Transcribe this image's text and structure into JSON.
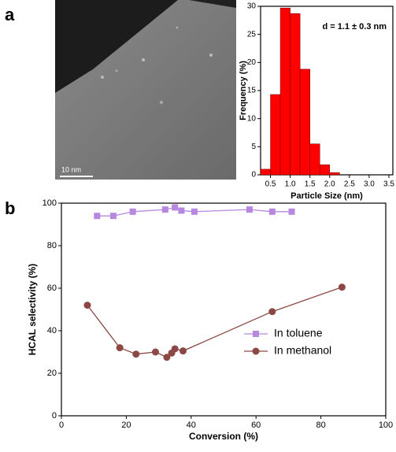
{
  "panel_labels": [
    "a",
    "b"
  ],
  "image": {
    "scale_bar": "10 nm"
  },
  "chart_data": [
    {
      "type": "histogram",
      "annotation": "d = 1.1 ± 0.3 nm",
      "x_label": "Particle Size (nm)",
      "y_label": "Frequency (%)",
      "bins": [
        0.25,
        0.5,
        0.75,
        1.0,
        1.25,
        1.5,
        1.75,
        2.0,
        2.25
      ],
      "values": [
        1,
        14.3,
        29.7,
        28.7,
        18.8,
        5.5,
        1.8,
        0.4
      ],
      "color": "#ff0000",
      "xlim": [
        0.25,
        3.6
      ],
      "xticks": [
        0.5,
        {
          "value": 1,
          "label": "1.0"
        },
        1.5,
        {
          "value": 2,
          "label": "2.0"
        },
        2.5,
        {
          "value": 3,
          "label": "3.0"
        },
        3.5
      ],
      "ylim": [
        0,
        30
      ],
      "yticks": [
        0,
        5,
        10,
        15,
        20,
        25,
        30
      ]
    },
    {
      "type": "line",
      "x_label": "Conversion (%)",
      "y_label": "HCAL selectivity (%)",
      "legend": "lower right",
      "series": [
        {
          "name": "In toluene",
          "color": "#b688e0",
          "marker": "square",
          "x": [
            11,
            16,
            22,
            32,
            35,
            37,
            41,
            58,
            65,
            71
          ],
          "values": [
            94,
            94,
            96,
            97,
            98,
            96.5,
            96,
            97,
            96,
            96
          ]
        },
        {
          "name": "In methanol",
          "color": "#8b4844",
          "marker": "circle",
          "x": [
            8,
            18,
            23,
            29,
            32.5,
            34,
            35,
            37.5,
            65,
            86.5
          ],
          "values": [
            52,
            32,
            29,
            30,
            27.5,
            29.5,
            31.5,
            30.5,
            49,
            60.5
          ]
        }
      ],
      "xlim": [
        0,
        100
      ],
      "xticks": [
        0,
        20,
        40,
        60,
        80,
        100
      ],
      "ylim": [
        0,
        100
      ],
      "yticks": [
        0,
        20,
        40,
        60,
        80,
        100
      ]
    }
  ]
}
